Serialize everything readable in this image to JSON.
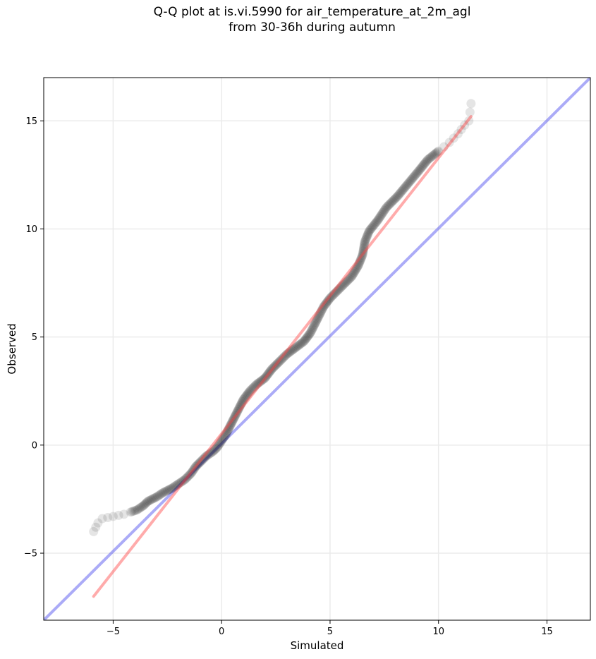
{
  "chart_data": {
    "type": "scatter",
    "title": [
      "Q-Q plot at is.vi.5990 for air_temperature_at_2m_agl",
      "from 30-36h during autumn"
    ],
    "xlabel": "Simulated",
    "ylabel": "Observed",
    "xlim": [
      -8.2,
      17.0
    ],
    "ylim": [
      -8.1,
      17.0
    ],
    "xticks": [
      -5,
      0,
      5,
      10,
      15
    ],
    "yticks": [
      -5,
      0,
      5,
      10,
      15
    ],
    "grid": true,
    "series": [
      {
        "type": "scatter",
        "color": "#000000",
        "points": [
          [
            -5.9,
            -4.0
          ],
          [
            -5.8,
            -3.8
          ],
          [
            -5.7,
            -3.6
          ],
          [
            -5.5,
            -3.4
          ],
          [
            -5.0,
            -3.3
          ],
          [
            -4.5,
            -3.2
          ],
          [
            -4.2,
            -3.1
          ],
          [
            -3.9,
            -3.0
          ],
          [
            -3.6,
            -2.8
          ],
          [
            -3.4,
            -2.6
          ],
          [
            -3.0,
            -2.4
          ],
          [
            -2.7,
            -2.2
          ],
          [
            -2.3,
            -2.0
          ],
          [
            -2.0,
            -1.8
          ],
          [
            -1.7,
            -1.6
          ],
          [
            -1.4,
            -1.3
          ],
          [
            -1.2,
            -1.0
          ],
          [
            -1.0,
            -0.8
          ],
          [
            -0.7,
            -0.5
          ],
          [
            -0.4,
            -0.3
          ],
          [
            -0.2,
            -0.1
          ],
          [
            0.0,
            0.2
          ],
          [
            0.2,
            0.5
          ],
          [
            0.4,
            0.9
          ],
          [
            0.6,
            1.3
          ],
          [
            0.8,
            1.7
          ],
          [
            1.0,
            2.1
          ],
          [
            1.3,
            2.5
          ],
          [
            1.6,
            2.8
          ],
          [
            2.0,
            3.1
          ],
          [
            2.3,
            3.5
          ],
          [
            2.7,
            3.9
          ],
          [
            3.0,
            4.2
          ],
          [
            3.4,
            4.5
          ],
          [
            3.8,
            4.8
          ],
          [
            4.1,
            5.2
          ],
          [
            4.4,
            5.8
          ],
          [
            4.7,
            6.4
          ],
          [
            5.0,
            6.8
          ],
          [
            5.5,
            7.3
          ],
          [
            6.0,
            7.8
          ],
          [
            6.3,
            8.3
          ],
          [
            6.5,
            8.8
          ],
          [
            6.6,
            9.4
          ],
          [
            6.8,
            9.9
          ],
          [
            7.2,
            10.4
          ],
          [
            7.6,
            11.0
          ],
          [
            8.1,
            11.5
          ],
          [
            8.6,
            12.1
          ],
          [
            9.1,
            12.7
          ],
          [
            9.5,
            13.2
          ],
          [
            10.0,
            13.6
          ],
          [
            10.5,
            14.0
          ],
          [
            10.9,
            14.4
          ],
          [
            11.2,
            14.8
          ],
          [
            11.4,
            15.0
          ],
          [
            11.5,
            15.8
          ]
        ]
      },
      {
        "type": "line",
        "color": "#ff4444",
        "points": [
          [
            -5.9,
            -7.0
          ],
          [
            11.5,
            15.2
          ]
        ]
      },
      {
        "type": "line",
        "color": "#4444ee",
        "points": [
          [
            -8.2,
            -8.1
          ],
          [
            17.0,
            17.0
          ]
        ]
      }
    ]
  }
}
